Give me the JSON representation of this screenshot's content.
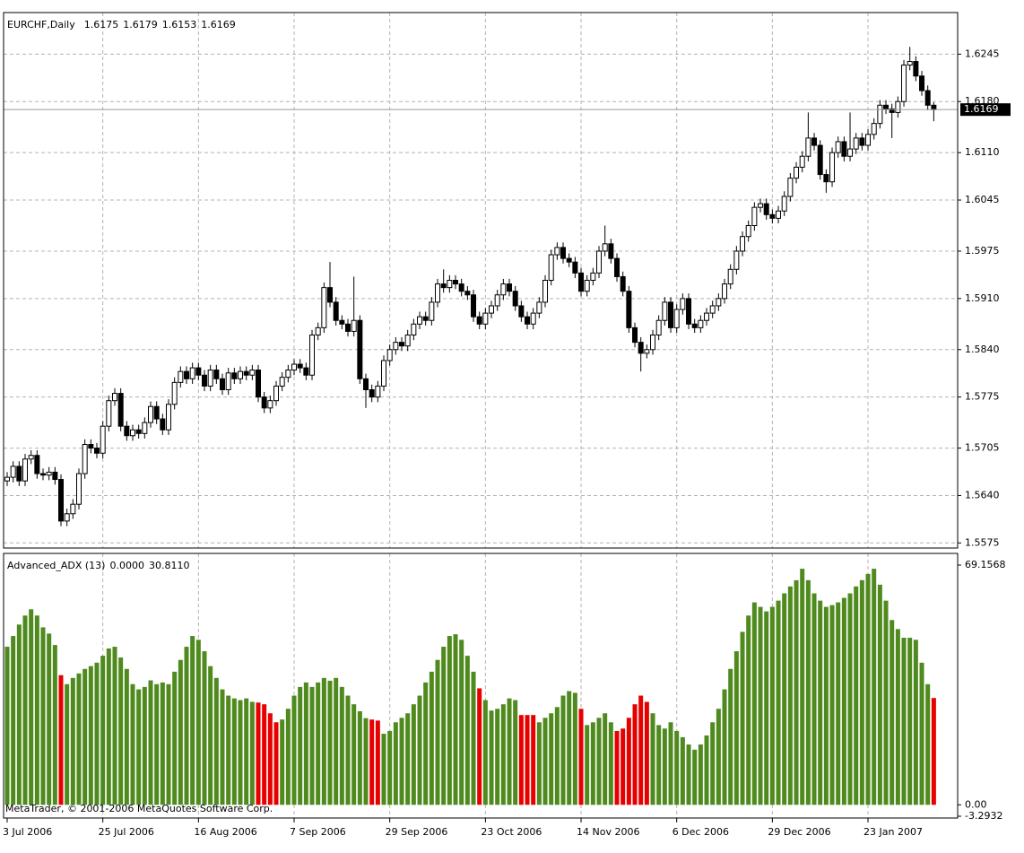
{
  "chart_data": [
    {
      "type": "candlestick",
      "title": "EURCHF,Daily",
      "categories": [
        "3 Jul 2006",
        null,
        null,
        null,
        null,
        null,
        null,
        null,
        null,
        null,
        null,
        null,
        null,
        null,
        null,
        null,
        "25 Jul 2006",
        null,
        null,
        null,
        null,
        null,
        null,
        null,
        null,
        null,
        null,
        null,
        null,
        null,
        null,
        null,
        "16 Aug 2006",
        null,
        null,
        null,
        null,
        null,
        null,
        null,
        null,
        null,
        null,
        null,
        null,
        null,
        null,
        null,
        "7 Sep 2006",
        null,
        null,
        null,
        null,
        null,
        null,
        null,
        null,
        null,
        null,
        null,
        null,
        null,
        null,
        null,
        "29 Sep 2006",
        null,
        null,
        null,
        null,
        null,
        null,
        null,
        null,
        null,
        null,
        null,
        null,
        null,
        null,
        null,
        "23 Oct 2006",
        null,
        null,
        null,
        null,
        null,
        null,
        null,
        null,
        null,
        null,
        null,
        null,
        null,
        null,
        null,
        "14 Nov 2006",
        null,
        null,
        null,
        null,
        null,
        null,
        null,
        null,
        null,
        null,
        null,
        null,
        null,
        null,
        null,
        "6 Dec 2006",
        null,
        null,
        null,
        null,
        null,
        null,
        null,
        null,
        null,
        null,
        null,
        null,
        null,
        null,
        null,
        "29 Dec 2006",
        null,
        null,
        null,
        null,
        null,
        null,
        null,
        null,
        null,
        null,
        null,
        null,
        null,
        null,
        null,
        "23 Jan 2007",
        null,
        null,
        null,
        null,
        null,
        null,
        null,
        null,
        null,
        null,
        null
      ],
      "open": [
        1.566,
        1.5665,
        1.568,
        1.566,
        1.569,
        1.5695,
        1.567,
        1.5668,
        1.5672,
        1.5662,
        1.5605,
        1.5615,
        1.5628,
        1.567,
        1.571,
        1.5705,
        1.5698,
        1.5735,
        1.577,
        1.578,
        1.5735,
        1.5722,
        1.573,
        1.5725,
        1.574,
        1.5762,
        1.5745,
        1.573,
        1.5765,
        1.5795,
        1.581,
        1.58,
        1.5815,
        1.5805,
        1.579,
        1.5812,
        1.58,
        1.5785,
        1.5808,
        1.58,
        1.581,
        1.5805,
        1.5812,
        1.5775,
        1.576,
        1.577,
        1.579,
        1.5802,
        1.5812,
        1.582,
        1.5815,
        1.5805,
        1.586,
        1.587,
        1.5925,
        1.5905,
        1.588,
        1.5875,
        1.5865,
        1.588,
        1.58,
        1.5785,
        1.5775,
        1.579,
        1.5825,
        1.584,
        1.585,
        1.5845,
        1.586,
        1.5875,
        1.5885,
        1.588,
        1.5905,
        1.593,
        1.5925,
        1.5935,
        1.593,
        1.592,
        1.5915,
        1.5885,
        1.5875,
        1.589,
        1.59,
        1.5915,
        1.593,
        1.592,
        1.59,
        1.5885,
        1.5875,
        1.589,
        1.5905,
        1.5935,
        1.597,
        1.598,
        1.5965,
        1.596,
        1.5945,
        1.592,
        1.5935,
        1.5945,
        1.5975,
        1.5985,
        1.5965,
        1.594,
        1.592,
        1.587,
        1.585,
        1.5835,
        1.584,
        1.586,
        1.588,
        1.5905,
        1.587,
        1.5895,
        1.591,
        1.5875,
        1.587,
        1.588,
        1.589,
        1.59,
        1.591,
        1.593,
        1.595,
        1.5975,
        1.5995,
        1.601,
        1.6035,
        1.604,
        1.6025,
        1.602,
        1.603,
        1.605,
        1.6075,
        1.609,
        1.6105,
        1.613,
        1.612,
        1.608,
        1.607,
        1.611,
        1.6125,
        1.6105,
        1.6115,
        1.613,
        1.612,
        1.6135,
        1.615,
        1.6175,
        1.617,
        1.6165,
        1.618,
        1.623,
        1.6235,
        1.6215,
        1.6195,
        1.6175
      ],
      "high": [
        1.5672,
        1.5687,
        1.5687,
        1.5697,
        1.5702,
        1.5702,
        1.5677,
        1.5679,
        1.5679,
        1.5669,
        1.5622,
        1.5635,
        1.5677,
        1.5717,
        1.5717,
        1.5712,
        1.5742,
        1.5777,
        1.5787,
        1.5787,
        1.5742,
        1.5737,
        1.5737,
        1.5747,
        1.5769,
        1.5769,
        1.5752,
        1.5772,
        1.5802,
        1.5817,
        1.5817,
        1.5822,
        1.5822,
        1.5812,
        1.5819,
        1.5819,
        1.5807,
        1.5815,
        1.5815,
        1.5817,
        1.5817,
        1.5819,
        1.5819,
        1.5782,
        1.5777,
        1.5797,
        1.5809,
        1.5819,
        1.5827,
        1.5827,
        1.5822,
        1.5867,
        1.5877,
        1.5932,
        1.596,
        1.5912,
        1.5887,
        1.5882,
        1.594,
        1.5887,
        1.5807,
        1.5792,
        1.5797,
        1.5832,
        1.5847,
        1.5857,
        1.5857,
        1.5867,
        1.5882,
        1.5892,
        1.5892,
        1.5912,
        1.5937,
        1.595,
        1.5942,
        1.5942,
        1.5937,
        1.5927,
        1.5922,
        1.5892,
        1.5897,
        1.5907,
        1.5922,
        1.5937,
        1.5937,
        1.5927,
        1.5907,
        1.5892,
        1.5897,
        1.5912,
        1.5942,
        1.5977,
        1.5987,
        1.5987,
        1.5972,
        1.5967,
        1.5952,
        1.5942,
        1.5952,
        1.5982,
        1.601,
        1.5992,
        1.5972,
        1.5947,
        1.5927,
        1.5877,
        1.5857,
        1.5847,
        1.5867,
        1.5887,
        1.5912,
        1.5912,
        1.5902,
        1.5917,
        1.5917,
        1.5882,
        1.5887,
        1.5897,
        1.5907,
        1.5917,
        1.5937,
        1.5957,
        1.5982,
        1.6002,
        1.6017,
        1.6042,
        1.6047,
        1.6047,
        1.6032,
        1.6037,
        1.6057,
        1.6082,
        1.6097,
        1.6112,
        1.6165,
        1.6137,
        1.6127,
        1.6087,
        1.6117,
        1.6132,
        1.6132,
        1.6165,
        1.6137,
        1.6137,
        1.6142,
        1.6157,
        1.6182,
        1.6182,
        1.6177,
        1.6187,
        1.6237,
        1.6255,
        1.6242,
        1.6222,
        1.6202,
        1.6179
      ],
      "low": [
        1.5653,
        1.5658,
        1.5653,
        1.5653,
        1.5683,
        1.5663,
        1.5661,
        1.5661,
        1.5655,
        1.5598,
        1.5598,
        1.5608,
        1.5621,
        1.5663,
        1.5698,
        1.5691,
        1.5691,
        1.5728,
        1.5763,
        1.5728,
        1.5715,
        1.5715,
        1.5718,
        1.5718,
        1.5733,
        1.5738,
        1.5723,
        1.5723,
        1.5758,
        1.5788,
        1.5793,
        1.5793,
        1.5798,
        1.5783,
        1.5783,
        1.5793,
        1.5778,
        1.5778,
        1.5793,
        1.5793,
        1.5798,
        1.5798,
        1.5768,
        1.5753,
        1.5753,
        1.5763,
        1.5783,
        1.5795,
        1.5805,
        1.5808,
        1.5798,
        1.5798,
        1.5853,
        1.5863,
        1.5898,
        1.5873,
        1.5868,
        1.5858,
        1.5858,
        1.5793,
        1.576,
        1.5768,
        1.5768,
        1.5783,
        1.5818,
        1.5833,
        1.5838,
        1.5838,
        1.5853,
        1.5868,
        1.5873,
        1.5873,
        1.5898,
        1.5918,
        1.5918,
        1.5923,
        1.5913,
        1.5908,
        1.5878,
        1.5868,
        1.5868,
        1.5883,
        1.5893,
        1.5908,
        1.5913,
        1.5893,
        1.5878,
        1.5868,
        1.5868,
        1.5883,
        1.5898,
        1.5928,
        1.5963,
        1.5958,
        1.5953,
        1.5938,
        1.5913,
        1.5913,
        1.5928,
        1.5938,
        1.5968,
        1.5958,
        1.5933,
        1.5913,
        1.5863,
        1.5843,
        1.581,
        1.5828,
        1.5833,
        1.5853,
        1.5873,
        1.5863,
        1.5863,
        1.5888,
        1.5868,
        1.5863,
        1.5863,
        1.5873,
        1.5883,
        1.5893,
        1.5903,
        1.5923,
        1.5943,
        1.5968,
        1.5988,
        1.6003,
        1.6028,
        1.6018,
        1.6013,
        1.6013,
        1.6023,
        1.6043,
        1.6068,
        1.6083,
        1.6098,
        1.6113,
        1.6073,
        1.6055,
        1.6063,
        1.6103,
        1.6098,
        1.6098,
        1.6108,
        1.6113,
        1.6113,
        1.6128,
        1.6143,
        1.6163,
        1.613,
        1.6158,
        1.6173,
        1.6223,
        1.6208,
        1.6188,
        1.6168,
        1.6153
      ],
      "close": [
        1.5665,
        1.568,
        1.566,
        1.569,
        1.5695,
        1.567,
        1.5668,
        1.5672,
        1.5662,
        1.5605,
        1.5615,
        1.5628,
        1.567,
        1.571,
        1.5705,
        1.5698,
        1.5735,
        1.577,
        1.578,
        1.5735,
        1.5722,
        1.573,
        1.5725,
        1.574,
        1.5762,
        1.5745,
        1.573,
        1.5765,
        1.5795,
        1.581,
        1.58,
        1.5815,
        1.5805,
        1.579,
        1.5812,
        1.58,
        1.5785,
        1.5808,
        1.58,
        1.581,
        1.5805,
        1.5812,
        1.5775,
        1.576,
        1.577,
        1.579,
        1.5802,
        1.5812,
        1.582,
        1.5815,
        1.5805,
        1.586,
        1.587,
        1.5925,
        1.5905,
        1.588,
        1.5875,
        1.5865,
        1.588,
        1.58,
        1.5785,
        1.5775,
        1.579,
        1.5825,
        1.584,
        1.585,
        1.5845,
        1.586,
        1.5875,
        1.5885,
        1.588,
        1.5905,
        1.593,
        1.5925,
        1.5935,
        1.593,
        1.592,
        1.5915,
        1.5885,
        1.5875,
        1.589,
        1.59,
        1.5915,
        1.593,
        1.592,
        1.59,
        1.5885,
        1.5875,
        1.589,
        1.5905,
        1.5935,
        1.597,
        1.598,
        1.5965,
        1.596,
        1.5945,
        1.592,
        1.5935,
        1.5945,
        1.5975,
        1.5985,
        1.5965,
        1.594,
        1.592,
        1.587,
        1.585,
        1.5835,
        1.584,
        1.586,
        1.588,
        1.5905,
        1.587,
        1.5895,
        1.591,
        1.5875,
        1.587,
        1.588,
        1.589,
        1.59,
        1.591,
        1.593,
        1.595,
        1.5975,
        1.5995,
        1.601,
        1.6035,
        1.604,
        1.6025,
        1.602,
        1.603,
        1.605,
        1.6075,
        1.609,
        1.6105,
        1.613,
        1.612,
        1.608,
        1.607,
        1.611,
        1.6125,
        1.6105,
        1.6115,
        1.613,
        1.612,
        1.6135,
        1.615,
        1.6175,
        1.617,
        1.6165,
        1.618,
        1.623,
        1.6235,
        1.6215,
        1.6195,
        1.6175,
        1.6169
      ],
      "up_color": "#ffffff",
      "down_color": "#000000",
      "wick_color": "#000000",
      "ylim": [
        1.5568,
        1.6302
      ],
      "yticks": [
        1.6245,
        {
          "value": 1.618,
          "label": "1.6180"
        },
        {
          "value": 1.611,
          "label": "1.6110"
        },
        1.6045,
        1.5975,
        {
          "value": 1.591,
          "label": "1.5910"
        },
        {
          "value": 1.584,
          "label": "1.5840"
        },
        1.5775,
        1.5705,
        {
          "value": 1.564,
          "label": "1.5640"
        },
        1.5575
      ],
      "grid": true
    },
    {
      "type": "bar",
      "title": "Advanced_ADX (13)",
      "readout": [
        {
          "value": 0,
          "label": "0.0000"
        },
        {
          "value": 30.811,
          "label": "30.8110"
        }
      ],
      "values": [
        45.6,
        48.7,
        52,
        54.6,
        56.4,
        54.6,
        51.2,
        49.4,
        46.1,
        37.4,
        34.8,
        36.6,
        37.9,
        39.2,
        40,
        41,
        43,
        45.1,
        45.6,
        42.5,
        39.2,
        34.8,
        33.3,
        34,
        35.9,
        34.8,
        35.3,
        34.8,
        38.4,
        41.8,
        45.6,
        48.7,
        47.6,
        44.3,
        40,
        36.6,
        33.3,
        31.5,
        30.7,
        30.2,
        30.7,
        29.7,
        29.5,
        29,
        26.4,
        23.8,
        24.6,
        27.7,
        31.5,
        34,
        35.3,
        34,
        35.3,
        36.6,
        35.8,
        36.6,
        34,
        31.5,
        29,
        27,
        25,
        24.6,
        24.3,
        20.5,
        21.3,
        23.8,
        25.1,
        26.4,
        29,
        31.5,
        35.3,
        38.4,
        41.8,
        45.6,
        48.7,
        49.2,
        47.6,
        43,
        38.4,
        33.6,
        30.2,
        27.2,
        27.7,
        29,
        30.7,
        30.2,
        25.9,
        25.9,
        25.9,
        23.8,
        25.1,
        26.4,
        28.2,
        31.5,
        32.8,
        32.3,
        27.7,
        23,
        23.8,
        25.1,
        26.4,
        23.8,
        21.3,
        22,
        25.1,
        29,
        31.5,
        29.7,
        26.4,
        23,
        22,
        23.8,
        21.3,
        19.5,
        17.4,
        15.9,
        17.4,
        20,
        23.8,
        27.7,
        33.3,
        39.2,
        44.3,
        49.9,
        54.6,
        58.4,
        57.1,
        55.8,
        57.1,
        58.9,
        61,
        63,
        64.8,
        68.1,
        64.8,
        61,
        58.9,
        57.1,
        57.6,
        58.4,
        59.7,
        61,
        63,
        64.8,
        66.6,
        68.1,
        63.5,
        58.9,
        53.3,
        50.7,
        48.2,
        48.2,
        47.6,
        41,
        34.8,
        30.811
      ],
      "colors": [
        "#4f8a1e",
        "#4f8a1e",
        "#4f8a1e",
        "#4f8a1e",
        "#4f8a1e",
        "#4f8a1e",
        "#4f8a1e",
        "#4f8a1e",
        "#4f8a1e",
        "#e60000",
        "#4f8a1e",
        "#4f8a1e",
        "#4f8a1e",
        "#4f8a1e",
        "#4f8a1e",
        "#4f8a1e",
        "#4f8a1e",
        "#4f8a1e",
        "#4f8a1e",
        "#4f8a1e",
        "#4f8a1e",
        "#4f8a1e",
        "#4f8a1e",
        "#4f8a1e",
        "#4f8a1e",
        "#4f8a1e",
        "#4f8a1e",
        "#4f8a1e",
        "#4f8a1e",
        "#4f8a1e",
        "#4f8a1e",
        "#4f8a1e",
        "#4f8a1e",
        "#4f8a1e",
        "#4f8a1e",
        "#4f8a1e",
        "#4f8a1e",
        "#4f8a1e",
        "#4f8a1e",
        "#4f8a1e",
        "#4f8a1e",
        "#4f8a1e",
        "#e60000",
        "#e60000",
        "#e60000",
        "#e60000",
        "#4f8a1e",
        "#4f8a1e",
        "#4f8a1e",
        "#4f8a1e",
        "#4f8a1e",
        "#4f8a1e",
        "#4f8a1e",
        "#4f8a1e",
        "#4f8a1e",
        "#4f8a1e",
        "#4f8a1e",
        "#4f8a1e",
        "#4f8a1e",
        "#4f8a1e",
        "#4f8a1e",
        "#e60000",
        "#e60000",
        "#4f8a1e",
        "#4f8a1e",
        "#4f8a1e",
        "#4f8a1e",
        "#4f8a1e",
        "#4f8a1e",
        "#4f8a1e",
        "#4f8a1e",
        "#4f8a1e",
        "#4f8a1e",
        "#4f8a1e",
        "#4f8a1e",
        "#4f8a1e",
        "#4f8a1e",
        "#4f8a1e",
        "#4f8a1e",
        "#e60000",
        "#4f8a1e",
        "#4f8a1e",
        "#4f8a1e",
        "#4f8a1e",
        "#4f8a1e",
        "#4f8a1e",
        "#e60000",
        "#e60000",
        "#e60000",
        "#4f8a1e",
        "#4f8a1e",
        "#4f8a1e",
        "#4f8a1e",
        "#4f8a1e",
        "#4f8a1e",
        "#4f8a1e",
        "#e60000",
        "#4f8a1e",
        "#4f8a1e",
        "#4f8a1e",
        "#4f8a1e",
        "#4f8a1e",
        "#e60000",
        "#e60000",
        "#e60000",
        "#e60000",
        "#e60000",
        "#e60000",
        "#4f8a1e",
        "#4f8a1e",
        "#4f8a1e",
        "#4f8a1e",
        "#4f8a1e",
        "#4f8a1e",
        "#4f8a1e",
        "#4f8a1e",
        "#4f8a1e",
        "#4f8a1e",
        "#4f8a1e",
        "#4f8a1e",
        "#4f8a1e",
        "#4f8a1e",
        "#4f8a1e",
        "#4f8a1e",
        "#4f8a1e",
        "#4f8a1e",
        "#4f8a1e",
        "#4f8a1e",
        "#4f8a1e",
        "#4f8a1e",
        "#4f8a1e",
        "#4f8a1e",
        "#4f8a1e",
        "#4f8a1e",
        "#4f8a1e",
        "#4f8a1e",
        "#4f8a1e",
        "#4f8a1e",
        "#4f8a1e",
        "#4f8a1e",
        "#4f8a1e",
        "#4f8a1e",
        "#4f8a1e",
        "#4f8a1e",
        "#4f8a1e",
        "#4f8a1e",
        "#4f8a1e",
        "#4f8a1e",
        "#4f8a1e",
        "#4f8a1e",
        "#4f8a1e",
        "#4f8a1e",
        "#4f8a1e",
        "#4f8a1e",
        "#4f8a1e",
        "#e60000"
      ],
      "ylim": [
        -3.2932,
        69.1568
      ],
      "yticks": [
        69.1568,
        {
          "value": 0,
          "label": "0.00"
        },
        -3.2932
      ]
    }
  ],
  "footer": "MetaTrader, © 2001-2006 MetaQuotes Software Corp."
}
